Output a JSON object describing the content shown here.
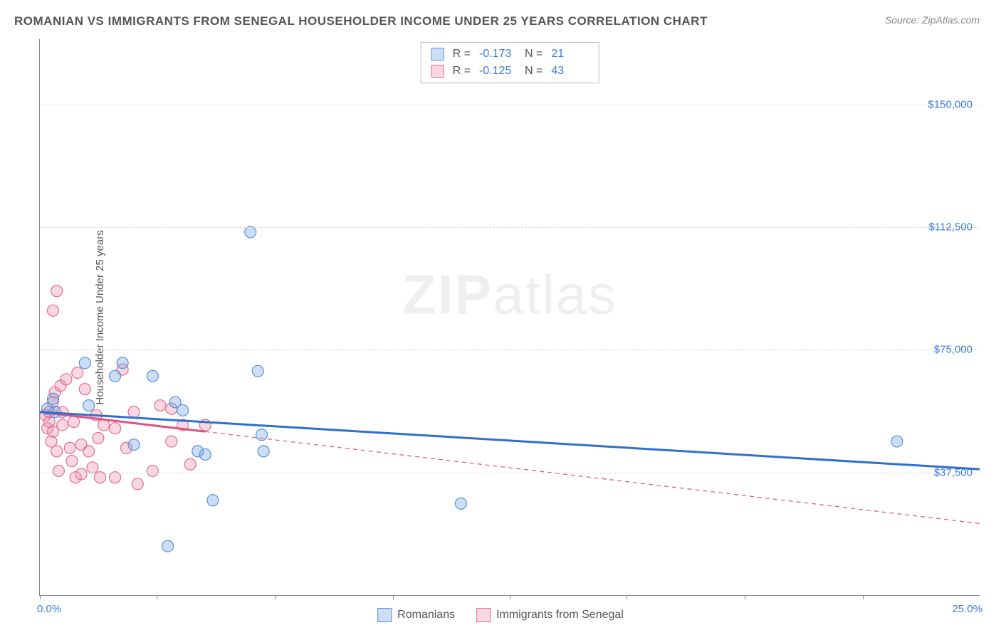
{
  "header": {
    "title": "ROMANIAN VS IMMIGRANTS FROM SENEGAL HOUSEHOLDER INCOME UNDER 25 YEARS CORRELATION CHART",
    "source_prefix": "Source: ",
    "source_name": "ZipAtlas.com"
  },
  "axes": {
    "y_label": "Householder Income Under 25 years",
    "x_min_label": "0.0%",
    "x_max_label": "25.0%",
    "x_min": 0,
    "x_max": 25,
    "y_min": 0,
    "y_max": 170000,
    "y_ticks": [
      {
        "value": 37500,
        "label": "$37,500"
      },
      {
        "value": 75000,
        "label": "$75,000"
      },
      {
        "value": 112500,
        "label": "$112,500"
      },
      {
        "value": 150000,
        "label": "$150,000"
      }
    ],
    "x_ticks_pct": [
      0,
      3.1,
      6.25,
      9.4,
      12.5,
      15.6,
      18.75,
      21.9
    ]
  },
  "watermark": {
    "bold": "ZIP",
    "rest": "atlas"
  },
  "series": {
    "a": {
      "name": "Romanians",
      "fill": "rgba(110,160,225,0.35)",
      "stroke": "#5a8fd6",
      "line_color": "#2f6fd0",
      "R_label": "R =",
      "R_value": "-0.173",
      "N_label": "N =",
      "N_value": "21",
      "regression": {
        "x1": 0,
        "y1": 56000,
        "x2": 25,
        "y2": 38500,
        "extrapolate_from_x": 25
      },
      "points": [
        {
          "x": 0.2,
          "y": 57000
        },
        {
          "x": 0.4,
          "y": 56000
        },
        {
          "x": 0.35,
          "y": 60000
        },
        {
          "x": 1.2,
          "y": 71000
        },
        {
          "x": 1.3,
          "y": 58000
        },
        {
          "x": 2.0,
          "y": 67000
        },
        {
          "x": 2.2,
          "y": 71000
        },
        {
          "x": 2.5,
          "y": 46000
        },
        {
          "x": 3.0,
          "y": 67000
        },
        {
          "x": 3.6,
          "y": 59000
        },
        {
          "x": 3.8,
          "y": 56500
        },
        {
          "x": 4.2,
          "y": 44000
        },
        {
          "x": 4.4,
          "y": 43000
        },
        {
          "x": 4.6,
          "y": 29000
        },
        {
          "x": 5.6,
          "y": 111000
        },
        {
          "x": 5.8,
          "y": 68500
        },
        {
          "x": 5.9,
          "y": 49000
        },
        {
          "x": 5.95,
          "y": 44000
        },
        {
          "x": 3.4,
          "y": 15000
        },
        {
          "x": 11.2,
          "y": 28000
        },
        {
          "x": 22.8,
          "y": 47000
        }
      ]
    },
    "b": {
      "name": "Immigrants from Senegal",
      "fill": "rgba(235,140,170,0.35)",
      "stroke": "#e06f96",
      "line_color": "#e05080",
      "R_label": "R =",
      "R_value": "-0.125",
      "N_label": "N =",
      "N_value": "43",
      "regression": {
        "x1": 0,
        "y1": 56000,
        "x2": 4.4,
        "y2": 50000,
        "extrapolate_from_x": 4.4
      },
      "points": [
        {
          "x": 0.15,
          "y": 55000
        },
        {
          "x": 0.2,
          "y": 51000
        },
        {
          "x": 0.25,
          "y": 53000
        },
        {
          "x": 0.25,
          "y": 56000
        },
        {
          "x": 0.3,
          "y": 47000
        },
        {
          "x": 0.35,
          "y": 50000
        },
        {
          "x": 0.35,
          "y": 59000
        },
        {
          "x": 0.4,
          "y": 62000
        },
        {
          "x": 0.45,
          "y": 44000
        },
        {
          "x": 0.5,
          "y": 38000
        },
        {
          "x": 0.55,
          "y": 64000
        },
        {
          "x": 0.6,
          "y": 56000
        },
        {
          "x": 0.6,
          "y": 52000
        },
        {
          "x": 0.45,
          "y": 93000
        },
        {
          "x": 0.35,
          "y": 87000
        },
        {
          "x": 0.7,
          "y": 66000
        },
        {
          "x": 0.8,
          "y": 45000
        },
        {
          "x": 0.85,
          "y": 41000
        },
        {
          "x": 0.9,
          "y": 53000
        },
        {
          "x": 0.95,
          "y": 36000
        },
        {
          "x": 1.0,
          "y": 68000
        },
        {
          "x": 1.1,
          "y": 37000
        },
        {
          "x": 1.1,
          "y": 46000
        },
        {
          "x": 1.2,
          "y": 63000
        },
        {
          "x": 1.3,
          "y": 44000
        },
        {
          "x": 1.4,
          "y": 39000
        },
        {
          "x": 1.5,
          "y": 55000
        },
        {
          "x": 1.55,
          "y": 48000
        },
        {
          "x": 1.6,
          "y": 36000
        },
        {
          "x": 1.7,
          "y": 52000
        },
        {
          "x": 2.0,
          "y": 51000
        },
        {
          "x": 2.0,
          "y": 36000
        },
        {
          "x": 2.2,
          "y": 69000
        },
        {
          "x": 2.3,
          "y": 45000
        },
        {
          "x": 2.5,
          "y": 56000
        },
        {
          "x": 2.6,
          "y": 34000
        },
        {
          "x": 3.0,
          "y": 38000
        },
        {
          "x": 3.2,
          "y": 58000
        },
        {
          "x": 3.5,
          "y": 47000
        },
        {
          "x": 3.5,
          "y": 57000
        },
        {
          "x": 3.8,
          "y": 52000
        },
        {
          "x": 4.0,
          "y": 40000
        },
        {
          "x": 4.4,
          "y": 52000
        }
      ]
    }
  },
  "style": {
    "point_radius": 8,
    "point_stroke_width": 1.2,
    "reg_line_width": 3,
    "dash_pattern": "6,5"
  }
}
